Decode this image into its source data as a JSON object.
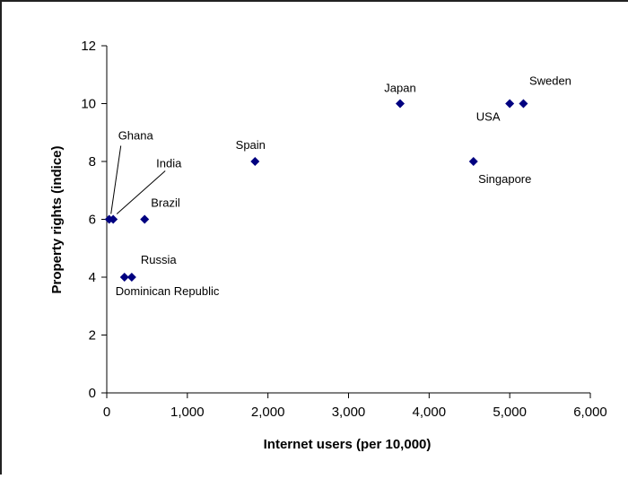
{
  "chart_data": {
    "type": "scatter",
    "title": "",
    "xlabel": "Internet users (per 10,000)",
    "ylabel": "Property rights (indice)",
    "xlim": [
      0,
      6000
    ],
    "ylim": [
      0,
      12
    ],
    "x_ticks": [
      0,
      1000,
      2000,
      3000,
      4000,
      5000,
      6000
    ],
    "x_tick_labels": [
      "0",
      "1,000",
      "2,000",
      "3,000",
      "4,000",
      "5,000",
      "6,000"
    ],
    "y_ticks": [
      0,
      2,
      4,
      6,
      8,
      10,
      12
    ],
    "y_tick_labels": [
      "0",
      "2",
      "4",
      "6",
      "8",
      "10",
      "12"
    ],
    "grid": false,
    "legend": "none",
    "marker": "diamond",
    "marker_color": "#000080",
    "points": [
      {
        "label": "Ghana",
        "x": 30,
        "y": 6
      },
      {
        "label": "India",
        "x": 80,
        "y": 6
      },
      {
        "label": "Brazil",
        "x": 470,
        "y": 6
      },
      {
        "label": "Russia",
        "x": 310,
        "y": 4
      },
      {
        "label": "Dominican Republic",
        "x": 220,
        "y": 4
      },
      {
        "label": "Spain",
        "x": 1840,
        "y": 8
      },
      {
        "label": "Japan",
        "x": 3640,
        "y": 10
      },
      {
        "label": "USA",
        "x": 5000,
        "y": 10
      },
      {
        "label": "Sweden",
        "x": 5170,
        "y": 10
      },
      {
        "label": "Singapore",
        "x": 4550,
        "y": 8
      }
    ]
  }
}
